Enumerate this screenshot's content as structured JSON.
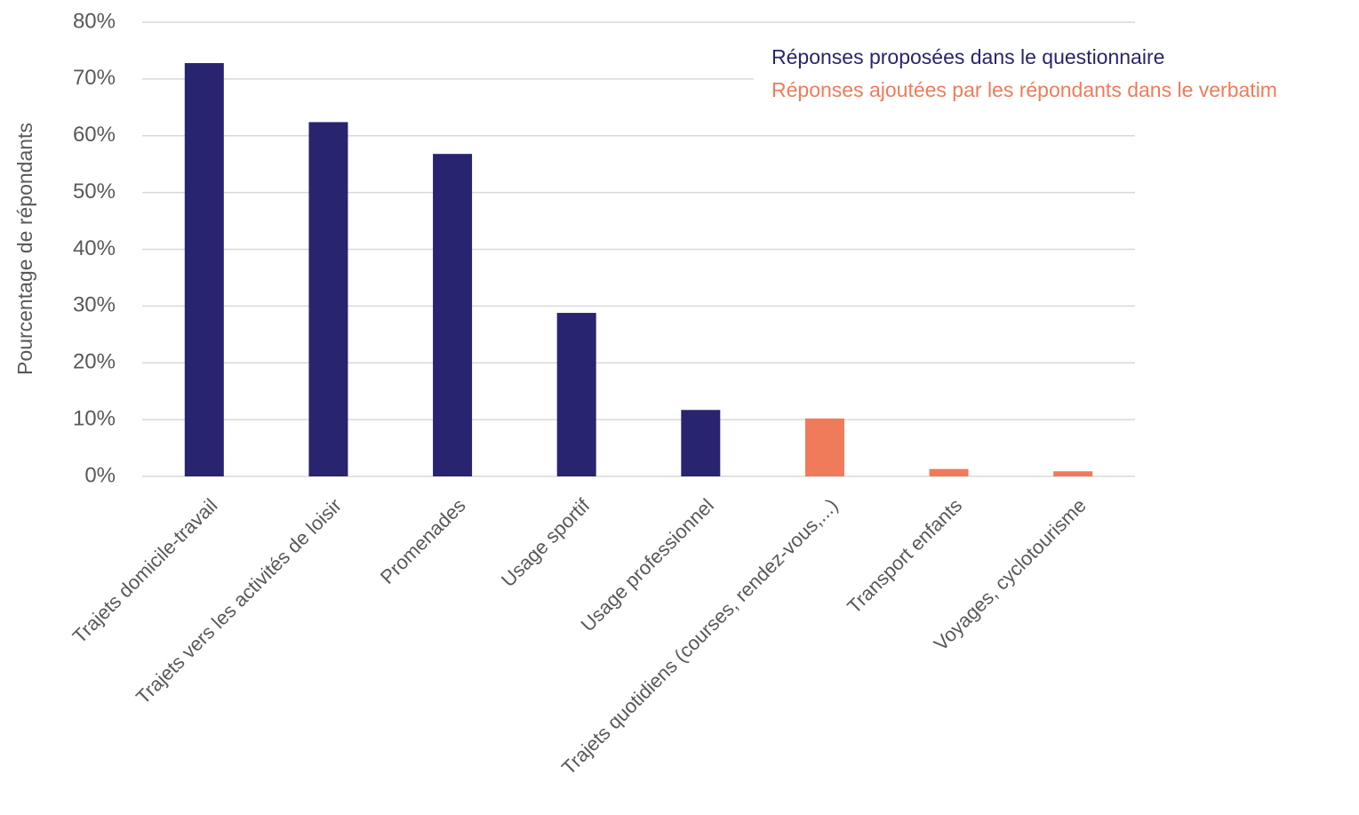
{
  "chart_data": {
    "type": "bar",
    "y_label": "Pourcentage de répondants",
    "categories": [
      "Trajets domicile-travail",
      "Trajets vers les activités de loisir",
      "Promenades",
      "Usage sportif",
      "Usage professionnel",
      "Trajets quotidiens (courses, rendez-vous,...)",
      "Transport enfants",
      "Voyages, cyclotourisme"
    ],
    "series": [
      {
        "name": "Réponses proposées dans le questionnaire",
        "color": "#29246f",
        "values": [
          72.8,
          62.4,
          56.8,
          28.8,
          11.7,
          null,
          null,
          null
        ]
      },
      {
        "name": "Réponses ajoutées par les répondants dans le verbatim",
        "color": "#f07b5a",
        "values": [
          null,
          null,
          null,
          null,
          null,
          10.2,
          1.3,
          0.9
        ]
      }
    ],
    "ylim": [
      0,
      80
    ],
    "yticks": [
      {
        "value": 0,
        "label": "0%"
      },
      {
        "value": 10,
        "label": "10%"
      },
      {
        "value": 20,
        "label": "20%"
      },
      {
        "value": 30,
        "label": "30%"
      },
      {
        "value": 40,
        "label": "40%"
      },
      {
        "value": 50,
        "label": "50%"
      },
      {
        "value": 60,
        "label": "60%"
      },
      {
        "value": 70,
        "label": "70%"
      },
      {
        "value": 80,
        "label": "80%"
      }
    ],
    "grid": true,
    "legend": "top-right"
  }
}
